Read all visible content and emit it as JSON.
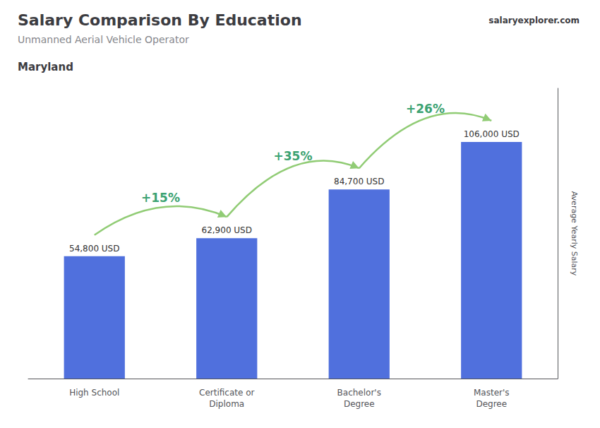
{
  "chart_data": {
    "type": "bar",
    "title": "Salary Comparison By Education",
    "subtitle": "Unmanned Aerial Vehicle Operator",
    "location": "Maryland",
    "source": "salaryexplorer.com",
    "categories": [
      "High School",
      "Certificate or\nDiploma",
      "Bachelor's\nDegree",
      "Master's\nDegree"
    ],
    "values": [
      54800,
      62900,
      84700,
      106000
    ],
    "value_labels": [
      "54,800 USD",
      "62,900 USD",
      "84,700 USD",
      "106,000 USD"
    ],
    "data_labels": true,
    "annotations": [
      "+15%",
      "+35%",
      "+26%"
    ],
    "ylabel": "Average Yearly Salary",
    "ylim": [
      0,
      130000
    ],
    "tick_labels": "x",
    "grid": false
  }
}
